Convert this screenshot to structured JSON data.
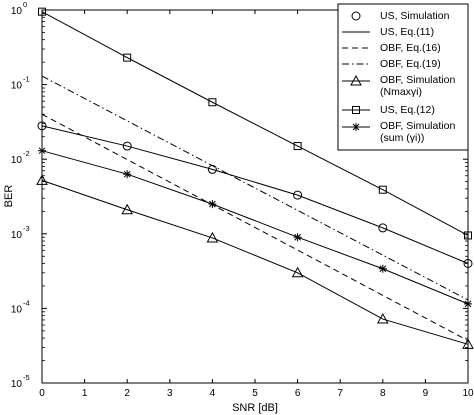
{
  "chart_data": {
    "type": "line",
    "xlabel": "SNR [dB]",
    "ylabel": "BER",
    "xlim": [
      0,
      10
    ],
    "ylim": [
      1e-05,
      1
    ],
    "yscale": "log",
    "grid": false,
    "legend_position": "top-right",
    "x_ticks": [
      "0",
      "1",
      "2",
      "3",
      "4",
      "5",
      "6",
      "7",
      "8",
      "9",
      "10"
    ],
    "y_ticks": [
      {
        "base": "10",
        "exp": "-5"
      },
      {
        "base": "10",
        "exp": "-4"
      },
      {
        "base": "10",
        "exp": "-3"
      },
      {
        "base": "10",
        "exp": "-2"
      },
      {
        "base": "10",
        "exp": "-1"
      },
      {
        "base": "10",
        "exp": "0"
      }
    ],
    "series": [
      {
        "name": "US, Simulation",
        "line": "none",
        "marker": "circle",
        "x": [
          0,
          2,
          4,
          6,
          8,
          10
        ],
        "y": [
          0.028,
          0.015,
          0.0073,
          0.0033,
          0.0012,
          0.0004
        ]
      },
      {
        "name": "US, Eq.(11)",
        "line": "solid",
        "marker": "none",
        "x": [
          0,
          2,
          4,
          6,
          8,
          10
        ],
        "y": [
          0.028,
          0.015,
          0.0073,
          0.0033,
          0.0012,
          0.0004
        ]
      },
      {
        "name": "OBF, Eq.(16)",
        "line": "dashed",
        "marker": "none",
        "x": [
          0,
          10
        ],
        "y": [
          0.04,
          3.7e-05
        ]
      },
      {
        "name": "OBF, Eq.(19)",
        "line": "dashdot",
        "marker": "none",
        "x": [
          0,
          10
        ],
        "y": [
          0.13,
          0.00013
        ]
      },
      {
        "name": "OBF, Simulation\n(Nmaxγi)",
        "line": "solid",
        "marker": "triangle",
        "x": [
          0,
          2,
          4,
          6,
          8,
          10
        ],
        "y": [
          0.0052,
          0.0021,
          0.00088,
          0.0003,
          7.2e-05,
          3.3e-05
        ]
      },
      {
        "name": "US, Eq.(12)",
        "line": "solid",
        "marker": "square",
        "x": [
          0,
          2,
          4,
          6,
          8,
          10
        ],
        "y": [
          0.95,
          0.23,
          0.058,
          0.015,
          0.0039,
          0.00095
        ]
      },
      {
        "name": "OBF, Simulation\n(sum (γi))",
        "line": "solid",
        "marker": "star",
        "x": [
          0,
          2,
          4,
          6,
          8,
          10
        ],
        "y": [
          0.013,
          0.0063,
          0.0025,
          0.0009,
          0.00034,
          0.000115
        ]
      }
    ]
  }
}
